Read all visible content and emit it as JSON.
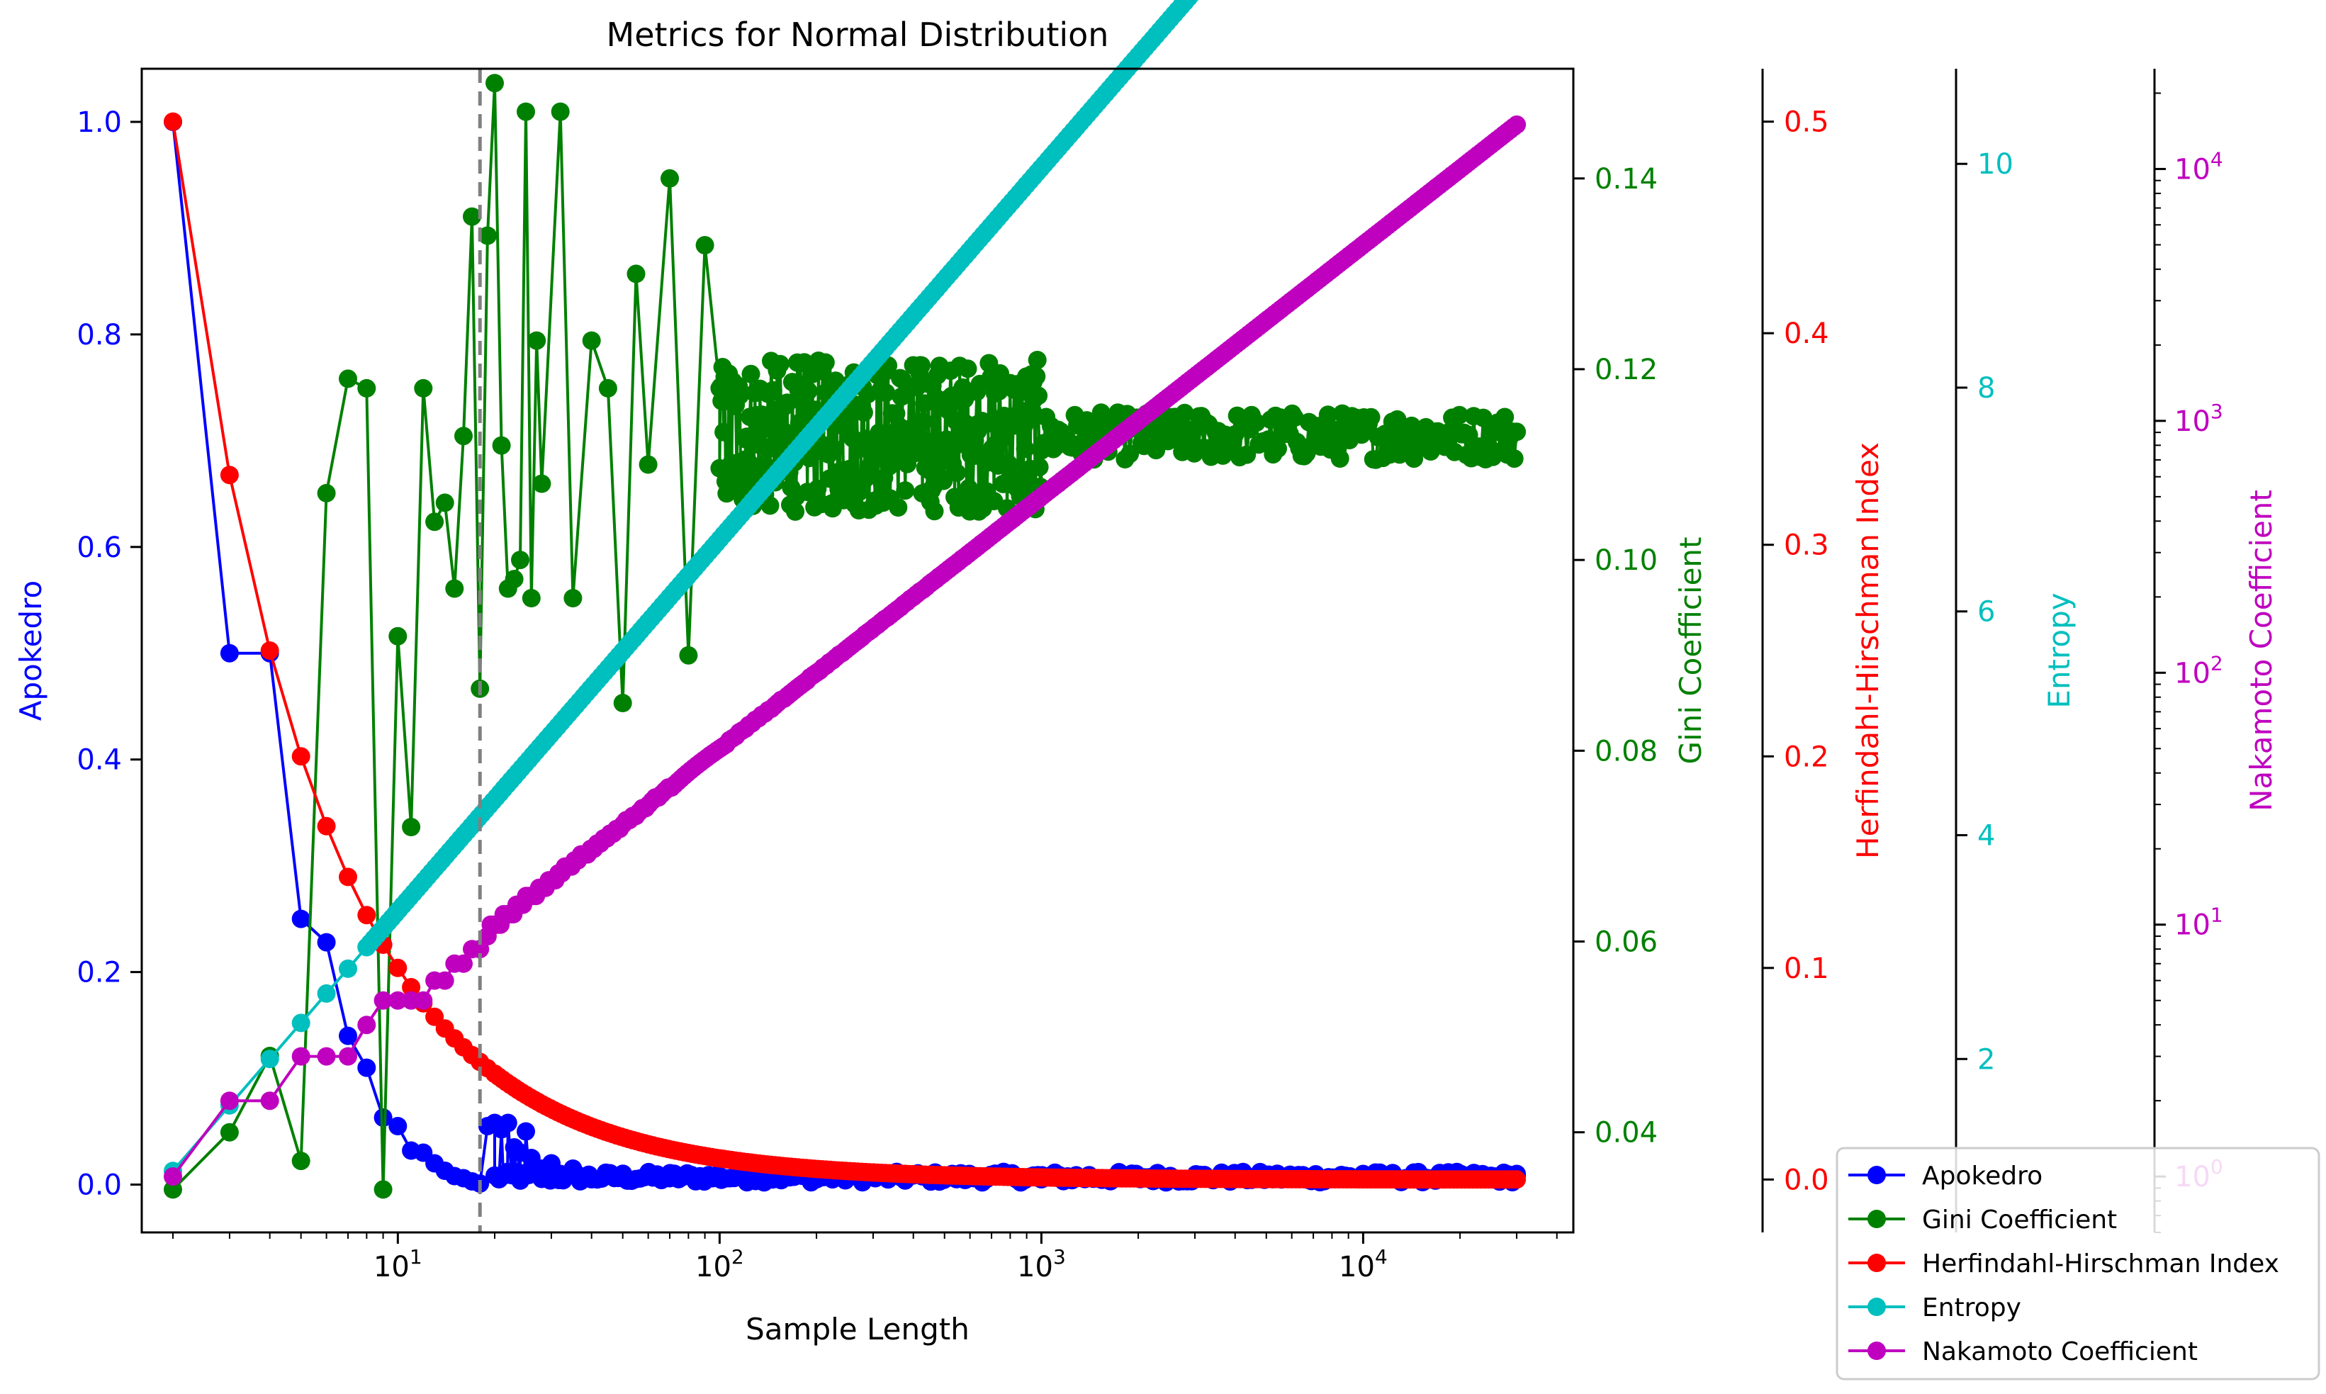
{
  "chart_data": {
    "type": "line",
    "title": "Metrics for Normal Distribution",
    "xlabel": "Sample Length",
    "xscale": "log",
    "xlim": [
      1.6,
      45000
    ],
    "x_ticks": [
      {
        "value": 10,
        "base": "10",
        "exp": "1"
      },
      {
        "value": 100,
        "base": "10",
        "exp": "2"
      },
      {
        "value": 1000,
        "base": "10",
        "exp": "3"
      },
      {
        "value": 10000,
        "base": "10",
        "exp": "4"
      }
    ],
    "vline": {
      "x": 18,
      "style": "dashed",
      "color": "#808080"
    },
    "axes": {
      "apokedro": {
        "label": "Apokedro",
        "color": "#0000ff",
        "ylim": [
          -0.045,
          1.05
        ],
        "side": "left",
        "ticks": [
          {
            "v": 0.0,
            "label": "0.0"
          },
          {
            "v": 0.2,
            "label": "0.2"
          },
          {
            "v": 0.4,
            "label": "0.4"
          },
          {
            "v": 0.6,
            "label": "0.6"
          },
          {
            "v": 0.8,
            "label": "0.8"
          },
          {
            "v": 1.0,
            "label": "1.0"
          }
        ]
      },
      "gini": {
        "label": "Gini Coefficient",
        "color": "#008000",
        "ylim": [
          0.0295,
          0.1515
        ],
        "side": "right",
        "ticks": [
          {
            "v": 0.04,
            "label": "0.04"
          },
          {
            "v": 0.06,
            "label": "0.06"
          },
          {
            "v": 0.08,
            "label": "0.08"
          },
          {
            "v": 0.1,
            "label": "0.10"
          },
          {
            "v": 0.12,
            "label": "0.12"
          },
          {
            "v": 0.14,
            "label": "0.14"
          }
        ]
      },
      "hhi": {
        "label": "Herfindahl-Hirschman Index",
        "color": "#ff0000",
        "ylim": [
          -0.025,
          0.525
        ],
        "side": "right",
        "ticks": [
          {
            "v": 0.0,
            "label": "0.0"
          },
          {
            "v": 0.1,
            "label": "0.1"
          },
          {
            "v": 0.2,
            "label": "0.2"
          },
          {
            "v": 0.3,
            "label": "0.3"
          },
          {
            "v": 0.4,
            "label": "0.4"
          },
          {
            "v": 0.5,
            "label": "0.5"
          }
        ]
      },
      "entropy": {
        "label": "Entropy",
        "color": "#00bfbf",
        "ylim": [
          0.45,
          10.85
        ],
        "side": "right",
        "ticks": [
          {
            "v": 2,
            "label": "2"
          },
          {
            "v": 4,
            "label": "4"
          },
          {
            "v": 6,
            "label": "6"
          },
          {
            "v": 8,
            "label": "8"
          },
          {
            "v": 10,
            "label": "10"
          }
        ]
      },
      "nakamoto": {
        "label": "Nakamoto Coefficient",
        "color": "#bf00bf",
        "yscale": "log",
        "ylim": [
          0.6,
          25000
        ],
        "side": "right",
        "ticks": [
          {
            "v": 1,
            "base": "10",
            "exp": "0"
          },
          {
            "v": 10,
            "base": "10",
            "exp": "1"
          },
          {
            "v": 100,
            "base": "10",
            "exp": "2"
          },
          {
            "v": 1000,
            "base": "10",
            "exp": "3"
          },
          {
            "v": 10000,
            "base": "10",
            "exp": "4"
          }
        ]
      }
    },
    "series": [
      {
        "name": "Apokedro",
        "axis": "apokedro",
        "color": "#0000ff",
        "points": [
          [
            2,
            1.0
          ],
          [
            3,
            0.5
          ],
          [
            4,
            0.5
          ],
          [
            5,
            0.25
          ],
          [
            6,
            0.228
          ],
          [
            7,
            0.14
          ],
          [
            8,
            0.11
          ],
          [
            9,
            0.063
          ],
          [
            10,
            0.055
          ],
          [
            11,
            0.032
          ],
          [
            12,
            0.03
          ],
          [
            13,
            0.02
          ],
          [
            14,
            0.013
          ],
          [
            15,
            0.008
          ],
          [
            16,
            0.006
          ],
          [
            17,
            0.003
          ],
          [
            18,
            0.001
          ],
          [
            19,
            0.055
          ],
          [
            20,
            0.058
          ],
          [
            21,
            0.052
          ],
          [
            22,
            0.058
          ],
          [
            23,
            0.035
          ],
          [
            24,
            0.03
          ],
          [
            25,
            0.05
          ],
          [
            26,
            0.025
          ],
          [
            28,
            0.015
          ],
          [
            30,
            0.02
          ],
          [
            32,
            0.01
          ],
          [
            35,
            0.015
          ],
          [
            40,
            0.005
          ],
          [
            50,
            0.01
          ],
          [
            70,
            0.006
          ],
          [
            100,
            0.008
          ],
          [
            200,
            0.005
          ],
          [
            300,
            0.01
          ],
          [
            500,
            0.008
          ],
          [
            1000,
            0.005
          ],
          [
            3000,
            0.008
          ],
          [
            10000,
            0.01
          ],
          [
            30000,
            0.01
          ]
        ],
        "tail": {
          "from": 20,
          "to": 30000,
          "count": 240,
          "base": 0.007,
          "noise": 0.01
        }
      },
      {
        "name": "Gini Coefficient",
        "axis": "gini",
        "color": "#008000",
        "points": [
          [
            2,
            0.034
          ],
          [
            3,
            0.04
          ],
          [
            4,
            0.048
          ],
          [
            5,
            0.037
          ],
          [
            6,
            0.107
          ],
          [
            7,
            0.119
          ],
          [
            8,
            0.118
          ],
          [
            9,
            0.034
          ],
          [
            10,
            0.092
          ],
          [
            11,
            0.072
          ],
          [
            12,
            0.118
          ],
          [
            13,
            0.104
          ],
          [
            14,
            0.106
          ],
          [
            15,
            0.097
          ],
          [
            16,
            0.113
          ],
          [
            17,
            0.136
          ],
          [
            18,
            0.0865
          ],
          [
            19,
            0.134
          ],
          [
            20,
            0.15
          ],
          [
            21,
            0.112
          ],
          [
            22,
            0.097
          ],
          [
            23,
            0.098
          ],
          [
            24,
            0.1
          ],
          [
            25,
            0.147
          ],
          [
            26,
            0.096
          ],
          [
            27,
            0.123
          ],
          [
            28,
            0.108
          ],
          [
            32,
            0.147
          ],
          [
            35,
            0.096
          ],
          [
            40,
            0.123
          ],
          [
            45,
            0.118
          ],
          [
            50,
            0.085
          ],
          [
            55,
            0.13
          ],
          [
            60,
            0.11
          ],
          [
            70,
            0.14
          ],
          [
            80,
            0.09
          ],
          [
            90,
            0.133
          ],
          [
            100,
            0.118
          ]
        ],
        "tail_bands": [
          {
            "from": 100,
            "to": 1000,
            "count": 320,
            "center": 0.113,
            "amp": 0.008
          },
          {
            "from": 1000,
            "to": 30000,
            "count": 200,
            "center": 0.113,
            "amp": 0.0025
          }
        ]
      },
      {
        "name": "Herfindahl-Hirschman Index",
        "axis": "hhi",
        "color": "#ff0000",
        "points": [
          [
            2,
            0.5
          ],
          [
            3,
            0.333
          ],
          [
            4,
            0.25
          ],
          [
            5,
            0.2
          ],
          [
            6,
            0.167
          ],
          [
            7,
            0.143
          ],
          [
            8,
            0.125
          ],
          [
            9,
            0.111
          ],
          [
            10,
            0.1
          ],
          [
            11,
            0.0909
          ],
          [
            12,
            0.0833
          ],
          [
            13,
            0.0769
          ],
          [
            14,
            0.0714
          ],
          [
            15,
            0.0667
          ],
          [
            16,
            0.0625
          ],
          [
            17,
            0.0588
          ],
          [
            18,
            0.0556
          ],
          [
            19,
            0.0526
          ],
          [
            20,
            0.05
          ]
        ],
        "formula": "1/n",
        "tail": {
          "from": 20,
          "to": 30000,
          "count": 260
        }
      },
      {
        "name": "Entropy",
        "axis": "entropy",
        "color": "#00bfbf",
        "points": [
          [
            2,
            1.0
          ],
          [
            3,
            1.585
          ],
          [
            4,
            2.0
          ],
          [
            5,
            2.322
          ],
          [
            6,
            2.585
          ],
          [
            7,
            2.807
          ],
          [
            8,
            3.0
          ]
        ],
        "formula": "log2(n)",
        "tail": {
          "from": 8,
          "to": 30000,
          "count": 320
        }
      },
      {
        "name": "Nakamoto Coefficient",
        "axis": "nakamoto",
        "color": "#bf00bf",
        "points": [
          [
            2,
            1
          ],
          [
            3,
            2
          ],
          [
            4,
            2
          ],
          [
            5,
            3
          ],
          [
            6,
            3
          ],
          [
            7,
            3
          ],
          [
            8,
            4
          ],
          [
            9,
            5
          ],
          [
            10,
            5
          ],
          [
            11,
            5
          ],
          [
            12,
            5
          ],
          [
            13,
            6
          ],
          [
            14,
            6
          ],
          [
            15,
            7
          ],
          [
            16,
            7
          ],
          [
            17,
            8
          ],
          [
            18,
            8
          ]
        ],
        "formula": "n/2",
        "tail": {
          "from": 19,
          "to": 30000,
          "count": 320
        }
      }
    ],
    "legend": {
      "position": "lower-right",
      "entries": [
        "Apokedro",
        "Gini Coefficient",
        "Herfindahl-Hirschman Index",
        "Entropy",
        "Nakamoto Coefficient"
      ]
    }
  }
}
